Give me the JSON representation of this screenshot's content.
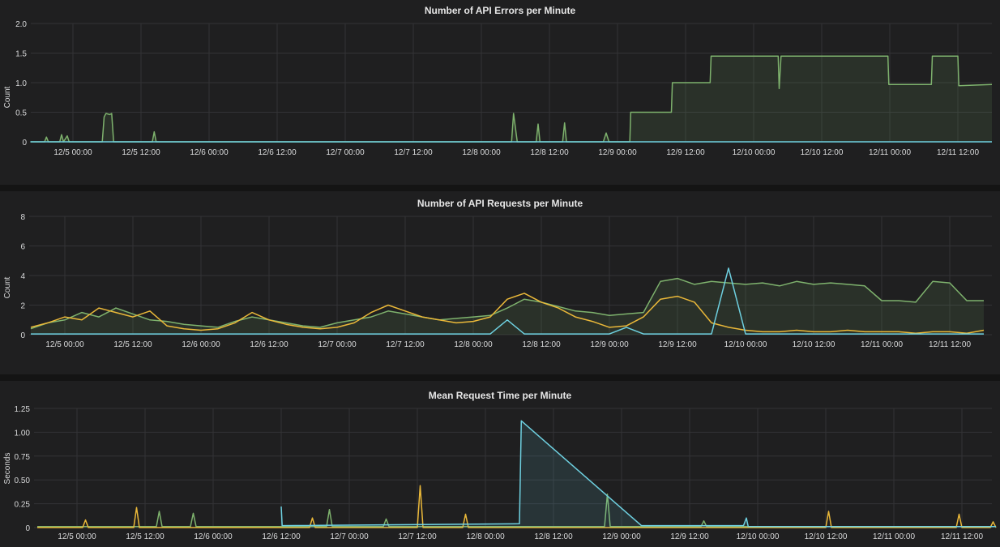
{
  "chart_data": [
    {
      "type": "area",
      "title": "Number of API Errors per Minute",
      "ylabel": "Count",
      "xlabel": "",
      "ylim": [
        0,
        2.0
      ],
      "xlim": [
        "12/4 16:30",
        "12/11 18:00"
      ],
      "yticks": [
        "0",
        "0.5",
        "1.0",
        "1.5",
        "2.0"
      ],
      "ytick_values": [
        0,
        0.5,
        1.0,
        1.5,
        2.0
      ],
      "xticks": [
        "12/5 00:00",
        "12/5 12:00",
        "12/6 00:00",
        "12/6 12:00",
        "12/7 00:00",
        "12/7 12:00",
        "12/8 00:00",
        "12/8 12:00",
        "12/9 00:00",
        "12/9 12:00",
        "12/10 00:00",
        "12/10 12:00",
        "12/11 00:00",
        "12/11 12:00"
      ],
      "grid": true,
      "series": [
        {
          "color": "#7eb26d",
          "fill": true,
          "points": [
            [
              "12/4 16:30",
              0
            ],
            [
              "12/4 19:00",
              0
            ],
            [
              "12/4 19:20",
              0.08
            ],
            [
              "12/4 19:40",
              0
            ],
            [
              "12/4 21:40",
              0
            ],
            [
              "12/4 22:00",
              0.12
            ],
            [
              "12/4 22:20",
              0
            ],
            [
              "12/4 23:00",
              0.1
            ],
            [
              "12/4 23:20",
              0
            ],
            [
              "12/5 05:10",
              0
            ],
            [
              "12/5 05:30",
              0.42
            ],
            [
              "12/5 05:50",
              0.48
            ],
            [
              "12/5 06:30",
              0.46
            ],
            [
              "12/5 06:50",
              0.48
            ],
            [
              "12/5 07:10",
              0
            ],
            [
              "12/5 14:00",
              0
            ],
            [
              "12/5 14:20",
              0.17
            ],
            [
              "12/5 14:40",
              0
            ],
            [
              "12/8 05:20",
              0
            ],
            [
              "12/8 05:40",
              0.48
            ],
            [
              "12/8 06:20",
              0
            ],
            [
              "12/8 09:40",
              0
            ],
            [
              "12/8 10:00",
              0.3
            ],
            [
              "12/8 10:20",
              0
            ],
            [
              "12/8 14:20",
              0
            ],
            [
              "12/8 14:40",
              0.32
            ],
            [
              "12/8 15:00",
              0
            ],
            [
              "12/8 21:30",
              0
            ],
            [
              "12/8 22:00",
              0.15
            ],
            [
              "12/8 22:30",
              0
            ],
            [
              "12/9 02:10",
              0
            ],
            [
              "12/9 02:20",
              0.5
            ],
            [
              "12/9 09:30",
              0.5
            ],
            [
              "12/9 09:40",
              1.0
            ],
            [
              "12/9 16:20",
              1.0
            ],
            [
              "12/9 16:30",
              1.45
            ],
            [
              "12/10 04:20",
              1.45
            ],
            [
              "12/10 04:30",
              0.9
            ],
            [
              "12/10 04:50",
              1.45
            ],
            [
              "12/10 23:40",
              1.45
            ],
            [
              "12/10 23:50",
              0.97
            ],
            [
              "12/11 07:20",
              0.97
            ],
            [
              "12/11 07:30",
              1.45
            ],
            [
              "12/11 12:00",
              1.45
            ],
            [
              "12/11 12:10",
              0.95
            ],
            [
              "12/11 18:00",
              0.97
            ]
          ]
        },
        {
          "color": "#6ed0e0",
          "fill": false,
          "points": [
            [
              "12/4 16:30",
              0
            ],
            [
              "12/11 18:00",
              0
            ]
          ]
        }
      ]
    },
    {
      "type": "line",
      "title": "Number of API Requests per Minute",
      "ylabel": "Count",
      "xlabel": "",
      "ylim": [
        0,
        8
      ],
      "xlim": [
        "12/4 16:30",
        "12/11 18:00"
      ],
      "yticks": [
        "0",
        "2",
        "4",
        "6",
        "8"
      ],
      "ytick_values": [
        0,
        2,
        4,
        6,
        8
      ],
      "xticks": [
        "12/5 00:00",
        "12/5 12:00",
        "12/6 00:00",
        "12/6 12:00",
        "12/7 00:00",
        "12/7 12:00",
        "12/8 00:00",
        "12/8 12:00",
        "12/9 00:00",
        "12/9 12:00",
        "12/10 00:00",
        "12/10 12:00",
        "12/11 00:00",
        "12/11 12:00"
      ],
      "grid": true,
      "x": [
        "12/4 18:00",
        "12/4 21:00",
        "12/5 00:00",
        "12/5 03:00",
        "12/5 06:00",
        "12/5 09:00",
        "12/5 12:00",
        "12/5 15:00",
        "12/5 18:00",
        "12/5 21:00",
        "12/6 00:00",
        "12/6 03:00",
        "12/6 06:00",
        "12/6 09:00",
        "12/6 12:00",
        "12/6 15:00",
        "12/6 18:00",
        "12/6 21:00",
        "12/7 00:00",
        "12/7 03:00",
        "12/7 06:00",
        "12/7 09:00",
        "12/7 12:00",
        "12/7 15:00",
        "12/7 18:00",
        "12/7 21:00",
        "12/8 00:00",
        "12/8 03:00",
        "12/8 06:00",
        "12/8 09:00",
        "12/8 12:00",
        "12/8 15:00",
        "12/8 18:00",
        "12/8 21:00",
        "12/9 00:00",
        "12/9 03:00",
        "12/9 06:00",
        "12/9 09:00",
        "12/9 12:00",
        "12/9 15:00",
        "12/9 18:00",
        "12/9 21:00",
        "12/10 00:00",
        "12/10 03:00",
        "12/10 06:00",
        "12/10 09:00",
        "12/10 12:00",
        "12/10 15:00",
        "12/10 18:00",
        "12/10 21:00",
        "12/11 00:00",
        "12/11 03:00",
        "12/11 06:00",
        "12/11 09:00",
        "12/11 12:00",
        "12/11 15:00",
        "12/11 18:00"
      ],
      "series": [
        {
          "color": "#7eb26d",
          "fill": true,
          "values": [
            0.4,
            0.8,
            1.0,
            1.5,
            1.2,
            1.8,
            1.4,
            1.0,
            0.9,
            0.7,
            0.6,
            0.5,
            0.9,
            1.2,
            1.0,
            0.8,
            0.6,
            0.5,
            0.8,
            1.0,
            1.2,
            1.6,
            1.4,
            1.2,
            1.0,
            1.1,
            1.2,
            1.3,
            1.8,
            2.4,
            2.2,
            1.9,
            1.6,
            1.5,
            1.3,
            1.4,
            1.5,
            3.6,
            3.8,
            3.4,
            3.6,
            3.5,
            3.4,
            3.5,
            3.3,
            3.6,
            3.4,
            3.5,
            3.4,
            3.3,
            2.3,
            2.3,
            2.2,
            3.6,
            3.5,
            2.3,
            2.3
          ]
        },
        {
          "color": "#eab839",
          "fill": false,
          "values": [
            0.5,
            0.8,
            1.2,
            1.0,
            1.8,
            1.5,
            1.2,
            1.6,
            0.6,
            0.4,
            0.3,
            0.4,
            0.8,
            1.5,
            1.0,
            0.7,
            0.5,
            0.4,
            0.5,
            0.8,
            1.5,
            2.0,
            1.6,
            1.2,
            1.0,
            0.8,
            0.9,
            1.2,
            2.4,
            2.8,
            2.2,
            1.8,
            1.2,
            0.9,
            0.5,
            0.6,
            1.2,
            2.4,
            2.6,
            2.2,
            0.8,
            0.5,
            0.3,
            0.2,
            0.2,
            0.3,
            0.2,
            0.2,
            0.3,
            0.2,
            0.2,
            0.2,
            0.1,
            0.2,
            0.2,
            0.1,
            0.3
          ]
        },
        {
          "color": "#6ed0e0",
          "fill": false,
          "values": [
            0.05,
            0.05,
            0.05,
            0.05,
            0.05,
            0.05,
            0.05,
            0.05,
            0.05,
            0.05,
            0.05,
            0.05,
            0.05,
            0.05,
            0.05,
            0.05,
            0.05,
            0.05,
            0.05,
            0.05,
            0.05,
            0.05,
            0.05,
            0.05,
            0.05,
            0.05,
            0.05,
            0.05,
            1.0,
            0.05,
            0.05,
            0.05,
            0.05,
            0.05,
            0.05,
            0.5,
            0.05,
            0.05,
            0.05,
            0.05,
            0.05,
            4.5,
            0.05,
            0.05,
            0.05,
            0.05,
            0.05,
            0.05,
            0.05,
            0.05,
            0.05,
            0.05,
            0.05,
            0.05,
            0.05,
            0.05,
            0.05
          ]
        }
      ]
    },
    {
      "type": "line",
      "title": "Mean Request Time per Minute",
      "ylabel": "Seconds",
      "xlabel": "",
      "ylim": [
        0,
        1.25
      ],
      "xlim": [
        "12/4 16:30",
        "12/11 18:00"
      ],
      "yticks": [
        "0",
        "0.25",
        "0.50",
        "0.75",
        "1.00",
        "1.25"
      ],
      "ytick_values": [
        0,
        0.25,
        0.5,
        0.75,
        1.0,
        1.25
      ],
      "xticks": [
        "12/5 00:00",
        "12/5 12:00",
        "12/6 00:00",
        "12/6 12:00",
        "12/7 00:00",
        "12/7 12:00",
        "12/8 00:00",
        "12/8 12:00",
        "12/9 00:00",
        "12/9 12:00",
        "12/10 00:00",
        "12/10 12:00",
        "12/11 00:00",
        "12/11 12:00"
      ],
      "grid": true,
      "series": [
        {
          "color": "#7eb26d",
          "fill": false,
          "points": [
            [
              "12/4 17:00",
              0.01
            ],
            [
              "12/5 14:00",
              0.01
            ],
            [
              "12/5 14:30",
              0.17
            ],
            [
              "12/5 15:00",
              0.01
            ],
            [
              "12/5 20:00",
              0.01
            ],
            [
              "12/5 20:30",
              0.15
            ],
            [
              "12/5 21:00",
              0.01
            ],
            [
              "12/6 20:00",
              0.01
            ],
            [
              "12/6 20:30",
              0.19
            ],
            [
              "12/6 21:00",
              0.01
            ],
            [
              "12/7 06:00",
              0.01
            ],
            [
              "12/7 06:30",
              0.09
            ],
            [
              "12/7 07:00",
              0.01
            ],
            [
              "12/8 21:00",
              0.01
            ],
            [
              "12/8 21:30",
              0.35
            ],
            [
              "12/8 22:00",
              0.01
            ],
            [
              "12/9 14:00",
              0.01
            ],
            [
              "12/9 14:30",
              0.07
            ],
            [
              "12/9 15:00",
              0.01
            ],
            [
              "12/11 18:00",
              0.01
            ]
          ]
        },
        {
          "color": "#eab839",
          "fill": false,
          "points": [
            [
              "12/4 17:00",
              0.0
            ],
            [
              "12/5 01:00",
              0.0
            ],
            [
              "12/5 01:30",
              0.08
            ],
            [
              "12/5 02:00",
              0.0
            ],
            [
              "12/5 10:00",
              0.0
            ],
            [
              "12/5 10:30",
              0.21
            ],
            [
              "12/5 11:00",
              0.0
            ],
            [
              "12/6 17:00",
              0.0
            ],
            [
              "12/6 17:30",
              0.1
            ],
            [
              "12/6 18:00",
              0.0
            ],
            [
              "12/7 12:00",
              0.0
            ],
            [
              "12/7 12:30",
              0.44
            ],
            [
              "12/7 13:00",
              0.0
            ],
            [
              "12/7 20:00",
              0.0
            ],
            [
              "12/7 20:30",
              0.14
            ],
            [
              "12/7 21:00",
              0.0
            ],
            [
              "12/10 12:00",
              0.0
            ],
            [
              "12/10 12:30",
              0.17
            ],
            [
              "12/10 13:00",
              0.0
            ],
            [
              "12/11 11:00",
              0.0
            ],
            [
              "12/11 11:30",
              0.14
            ],
            [
              "12/11 12:00",
              0.0
            ],
            [
              "12/11 17:00",
              0.0
            ],
            [
              "12/11 17:30",
              0.06
            ],
            [
              "12/11 18:00",
              0.0
            ]
          ]
        },
        {
          "color": "#6ed0e0",
          "fill": true,
          "points": [
            [
              "12/6 12:00",
              0.22
            ],
            [
              "12/6 12:10",
              0.02
            ],
            [
              "12/8 06:00",
              0.04
            ],
            [
              "12/8 06:20",
              1.12
            ],
            [
              "12/9 03:30",
              0.02
            ],
            [
              "12/9 21:30",
              0.02
            ],
            [
              "12/9 22:00",
              0.1
            ],
            [
              "12/9 22:20",
              0.01
            ],
            [
              "12/11 18:00",
              0.01
            ]
          ]
        }
      ]
    }
  ]
}
